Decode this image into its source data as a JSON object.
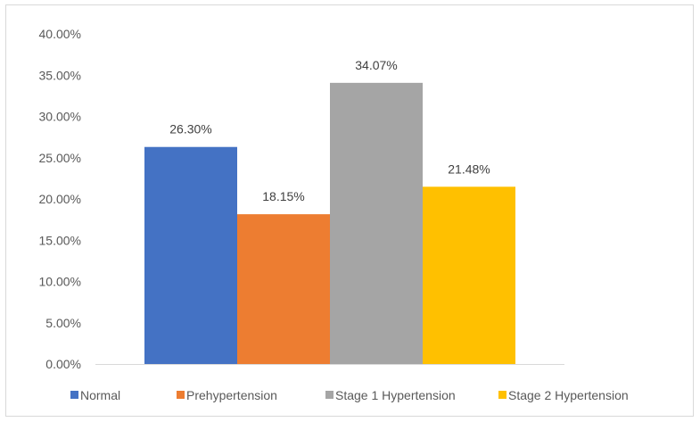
{
  "chart_data": {
    "type": "bar",
    "title": "",
    "xlabel": "",
    "ylabel": "",
    "categories": [
      "Normal",
      "Prehypertension",
      "Stage 1 Hypertension",
      "Stage 2 Hypertension"
    ],
    "series": [
      {
        "name": "Normal",
        "value": 26.3,
        "label": "26.30%",
        "color": "#4472c4"
      },
      {
        "name": "Prehypertension",
        "value": 18.15,
        "label": "18.15%",
        "color": "#ed7d31"
      },
      {
        "name": "Stage 1 Hypertension",
        "value": 34.07,
        "label": "34.07%",
        "color": "#a5a5a5"
      },
      {
        "name": "Stage 2 Hypertension",
        "value": 21.48,
        "label": "21.48%",
        "color": "#ffc000"
      }
    ],
    "ylim": [
      0,
      40
    ],
    "y_ticks": [
      "0.00%",
      "5.00%",
      "10.00%",
      "15.00%",
      "20.00%",
      "25.00%",
      "30.00%",
      "35.00%",
      "40.00%"
    ],
    "grid": false,
    "legend_position": "bottom"
  }
}
